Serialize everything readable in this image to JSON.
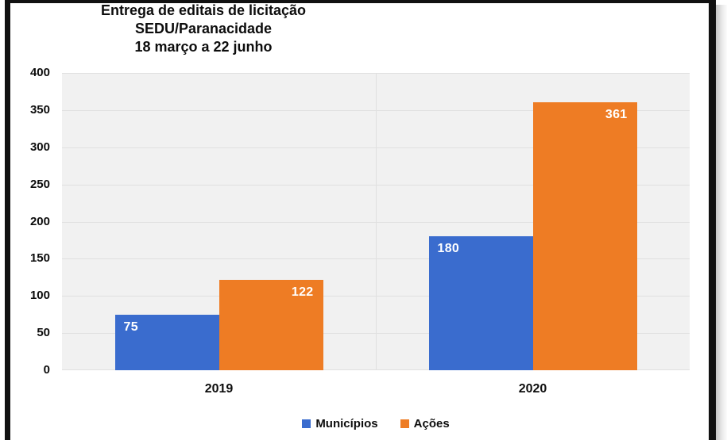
{
  "window": {
    "background": "#ffffff",
    "frame_color": "#111111"
  },
  "chart_data": {
    "type": "bar",
    "title": "Entrega de editais de licitação",
    "subtitle": "SEDU/Paranacidade",
    "period_label": "18 março a 22 junho",
    "categories": [
      "2019",
      "2020"
    ],
    "series": [
      {
        "name": "Municípios",
        "color": "#3a6cce",
        "values": [
          75,
          180
        ]
      },
      {
        "name": "Ações",
        "color": "#ee7c24",
        "values": [
          122,
          361
        ]
      }
    ],
    "ylim": [
      0,
      400
    ],
    "ytick_step": 50,
    "yticks": [
      400,
      350,
      300,
      250,
      200,
      150,
      100,
      50,
      0
    ],
    "grid": true,
    "gridline_color": "#e0e0e0",
    "plot_background": "#f1f1f1",
    "data_labels": true,
    "data_label_color": "#ffffff",
    "legend_position": "bottom"
  }
}
